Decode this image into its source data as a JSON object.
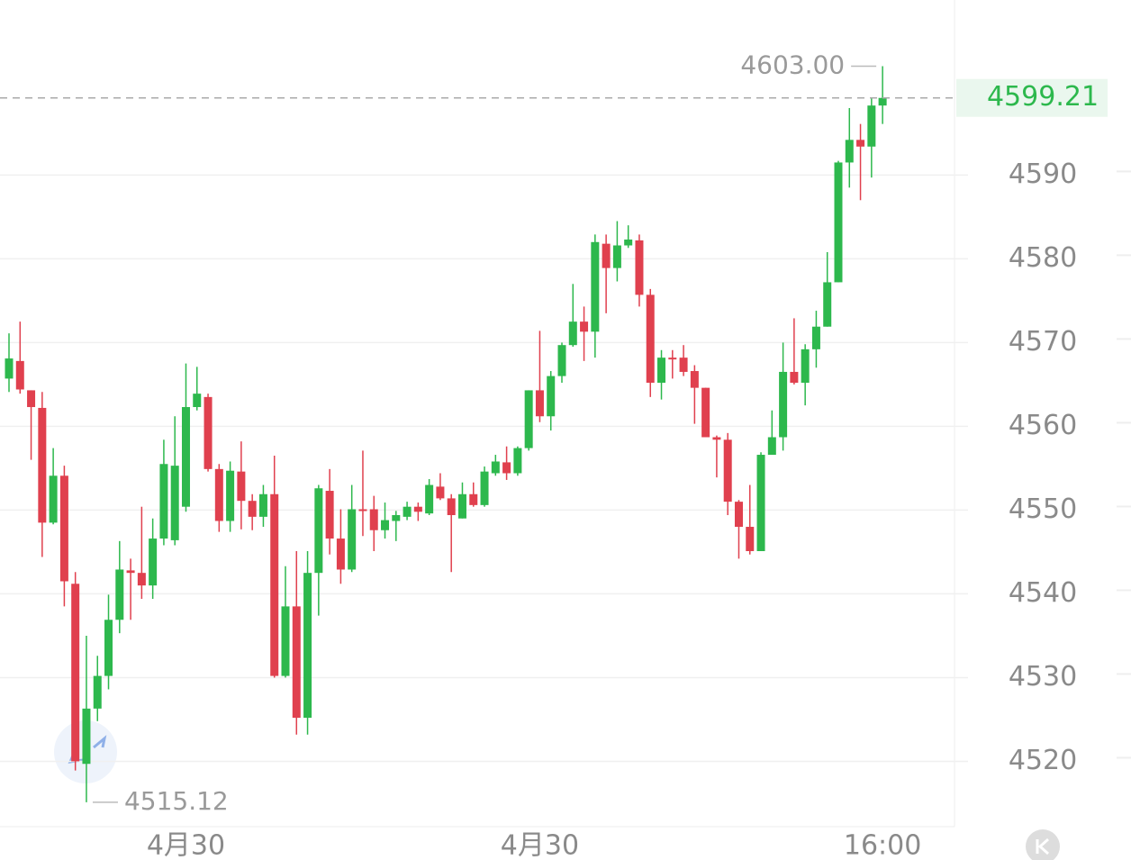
{
  "chart_data": {
    "type": "candlestick",
    "categories": [
      null,
      null,
      null,
      null,
      null,
      null,
      null,
      null,
      null,
      null,
      null,
      null,
      null,
      null,
      null,
      null,
      "4月30",
      null,
      null,
      null,
      null,
      null,
      null,
      null,
      null,
      null,
      null,
      null,
      null,
      null,
      null,
      null,
      null,
      null,
      null,
      null,
      null,
      null,
      null,
      null,
      null,
      null,
      null,
      null,
      null,
      null,
      null,
      null,
      "4月30",
      null,
      null,
      null,
      null,
      null,
      null,
      null,
      null,
      null,
      null,
      null,
      null,
      null,
      null,
      null,
      null,
      null,
      null,
      null,
      null,
      null,
      null,
      null,
      null,
      null,
      null,
      null,
      null,
      null,
      null,
      "16:00"
    ],
    "open": [
      4565.7,
      4567.8,
      4564.3,
      4562.2,
      4548.5,
      4554.1,
      4541.2,
      4519.7,
      4526.3,
      4530.2,
      4536.9,
      4542.8,
      4542.5,
      4541.0,
      4546.6,
      4546.4,
      4550.4,
      4562.3,
      4563.5,
      4554.9,
      4548.7,
      4554.6,
      4551.1,
      4549.2,
      4551.9,
      4530.2,
      4538.5,
      4525.2,
      4542.5,
      4552.3,
      4546.6,
      4542.9,
      4550.1,
      4550.1,
      4547.6,
      4548.7,
      4549.2,
      4550.4,
      4549.6,
      4552.8,
      4551.4,
      4549.0,
      4551.9,
      4550.6,
      4554.4,
      4555.7,
      4554.4,
      4557.4,
      4564.3,
      4561.2,
      4566.0,
      4569.7,
      4572.5,
      4571.3,
      4581.8,
      4578.9,
      4581.6,
      4582.2,
      4575.7,
      4565.2,
      4568.2,
      4568.2,
      4566.6,
      4564.6,
      4558.7,
      4558.4,
      4551.0,
      4548.0,
      4545.1,
      4556.6,
      4558.7,
      4566.5,
      4565.2,
      4569.2,
      4571.9,
      4577.2,
      4591.5,
      4594.2,
      4593.4,
      4598.3
    ],
    "close": [
      4568.1,
      4564.4,
      4562.3,
      4548.5,
      4554.1,
      4541.5,
      4520.0,
      4526.3,
      4530.2,
      4536.9,
      4542.9,
      4542.5,
      4541.0,
      4546.6,
      4555.5,
      4555.3,
      4562.3,
      4563.9,
      4554.9,
      4548.7,
      4554.7,
      4551.1,
      4549.2,
      4551.9,
      4530.2,
      4538.5,
      4525.2,
      4542.5,
      4552.6,
      4546.6,
      4542.9,
      4550.1,
      4549.9,
      4547.6,
      4548.8,
      4549.4,
      4550.4,
      4549.8,
      4553.0,
      4551.4,
      4549.4,
      4551.9,
      4550.6,
      4554.6,
      4555.8,
      4554.4,
      4557.4,
      4564.3,
      4561.2,
      4566.0,
      4569.7,
      4572.5,
      4571.3,
      4582.0,
      4578.9,
      4581.6,
      4582.3,
      4575.7,
      4565.2,
      4568.2,
      4568.1,
      4566.5,
      4564.6,
      4558.7,
      4558.4,
      4551.0,
      4548.0,
      4545.1,
      4556.6,
      4558.7,
      4566.5,
      4565.2,
      4569.2,
      4571.9,
      4577.2,
      4591.5,
      4594.2,
      4593.4,
      4598.3,
      4599.21
    ],
    "high": [
      4571.1,
      4572.5,
      4564.3,
      4564.1,
      4557.4,
      4555.3,
      4542.6,
      4535.0,
      4532.6,
      4539.9,
      4546.3,
      4544.2,
      4550.4,
      4549.0,
      4558.4,
      4561.2,
      4567.5,
      4567.1,
      4563.9,
      4555.5,
      4555.8,
      4558.2,
      4551.9,
      4553.0,
      4556.5,
      4543.3,
      4545.1,
      4545.1,
      4553.0,
      4554.9,
      4550.1,
      4553.0,
      4557.1,
      4551.7,
      4550.9,
      4549.9,
      4551.0,
      4550.9,
      4553.7,
      4554.4,
      4551.9,
      4553.3,
      4553.3,
      4555.2,
      4556.6,
      4557.6,
      4557.6,
      4564.3,
      4571.4,
      4566.6,
      4570.0,
      4577.0,
      4574.3,
      4582.9,
      4582.9,
      4584.5,
      4584.0,
      4582.9,
      4576.4,
      4569.1,
      4569.1,
      4569.7,
      4567.3,
      4564.6,
      4558.9,
      4559.2,
      4551.2,
      4553.0,
      4556.9,
      4561.9,
      4570.0,
      4572.9,
      4569.8,
      4573.8,
      4580.8,
      4591.7,
      4598.0,
      4596.1,
      4599.2,
      4603.0
    ],
    "low": [
      4564.1,
      4563.9,
      4556.0,
      4544.4,
      4548.3,
      4538.5,
      4518.9,
      4515.12,
      4524.8,
      4528.6,
      4535.3,
      4536.9,
      4539.4,
      4539.4,
      4545.8,
      4545.8,
      4549.8,
      4561.9,
      4554.6,
      4547.4,
      4547.4,
      4547.7,
      4547.6,
      4548.0,
      4530.0,
      4530.0,
      4523.2,
      4523.2,
      4537.4,
      4544.7,
      4541.2,
      4542.6,
      4546.9,
      4545.1,
      4546.6,
      4546.3,
      4548.8,
      4548.7,
      4549.4,
      4551.2,
      4542.6,
      4549.0,
      4550.4,
      4550.4,
      4554.1,
      4553.6,
      4554.1,
      4557.1,
      4560.5,
      4559.5,
      4565.2,
      4569.5,
      4567.8,
      4568.2,
      4573.5,
      4577.3,
      4581.3,
      4574.3,
      4563.5,
      4563.2,
      4565.7,
      4566.0,
      4560.3,
      4558.7,
      4553.9,
      4549.4,
      4544.2,
      4544.7,
      4545.1,
      4556.6,
      4557.1,
      4565.0,
      4562.5,
      4567.0,
      4571.9,
      4577.2,
      4588.5,
      4587.0,
      4589.7,
      4596.1
    ],
    "up_color": "#2db84d",
    "down_color": "#e0404e",
    "ylim": [
      4512.2,
      4610.9
    ],
    "yticks": [
      4520,
      4530,
      4540,
      4550,
      4560,
      4570,
      4580,
      4590
    ],
    "grid": true,
    "last_price": 4599.21,
    "high_annotation": {
      "value": 4603,
      "label": "4603.00"
    },
    "low_annotation": {
      "value": 4515.12,
      "label": "4515.12"
    }
  }
}
